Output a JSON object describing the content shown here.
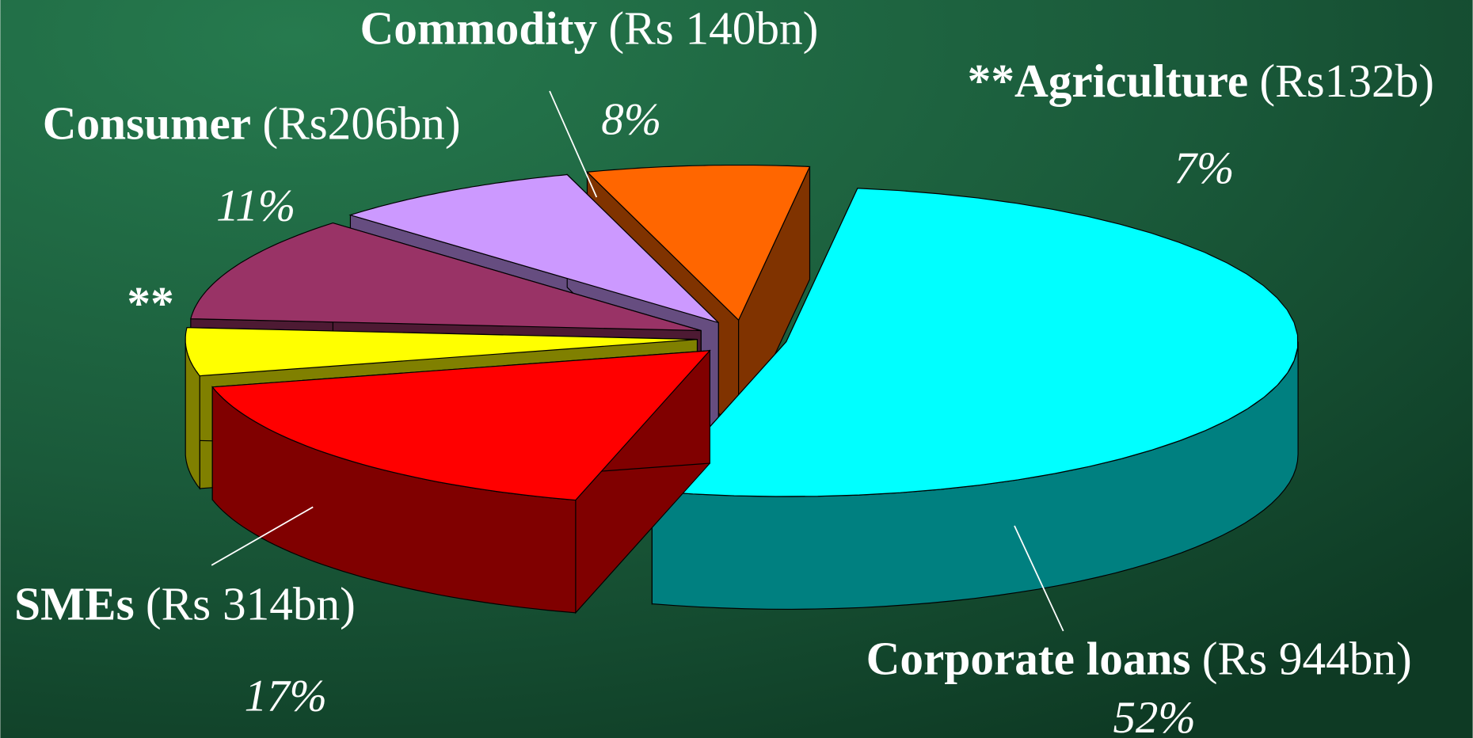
{
  "chart_data": {
    "type": "pie3d",
    "categories": [
      "Corporate loans",
      "SMEs",
      "**",
      "Consumer",
      "Commodity",
      "**Agriculture"
    ],
    "amounts": [
      "(Rs 944bn)",
      "(Rs 314bn)",
      null,
      "(Rs206bn)",
      "(Rs 140bn)",
      "(Rs132b)"
    ],
    "values": [
      52,
      17,
      5,
      11,
      8,
      7
    ],
    "value_labels": [
      "52%",
      "17%",
      null,
      "11%",
      "8%",
      "7%"
    ],
    "colors": [
      "#00ffff",
      "#ff0000",
      "#ffff00",
      "#993366",
      "#cc99ff",
      "#ff6600"
    ]
  }
}
